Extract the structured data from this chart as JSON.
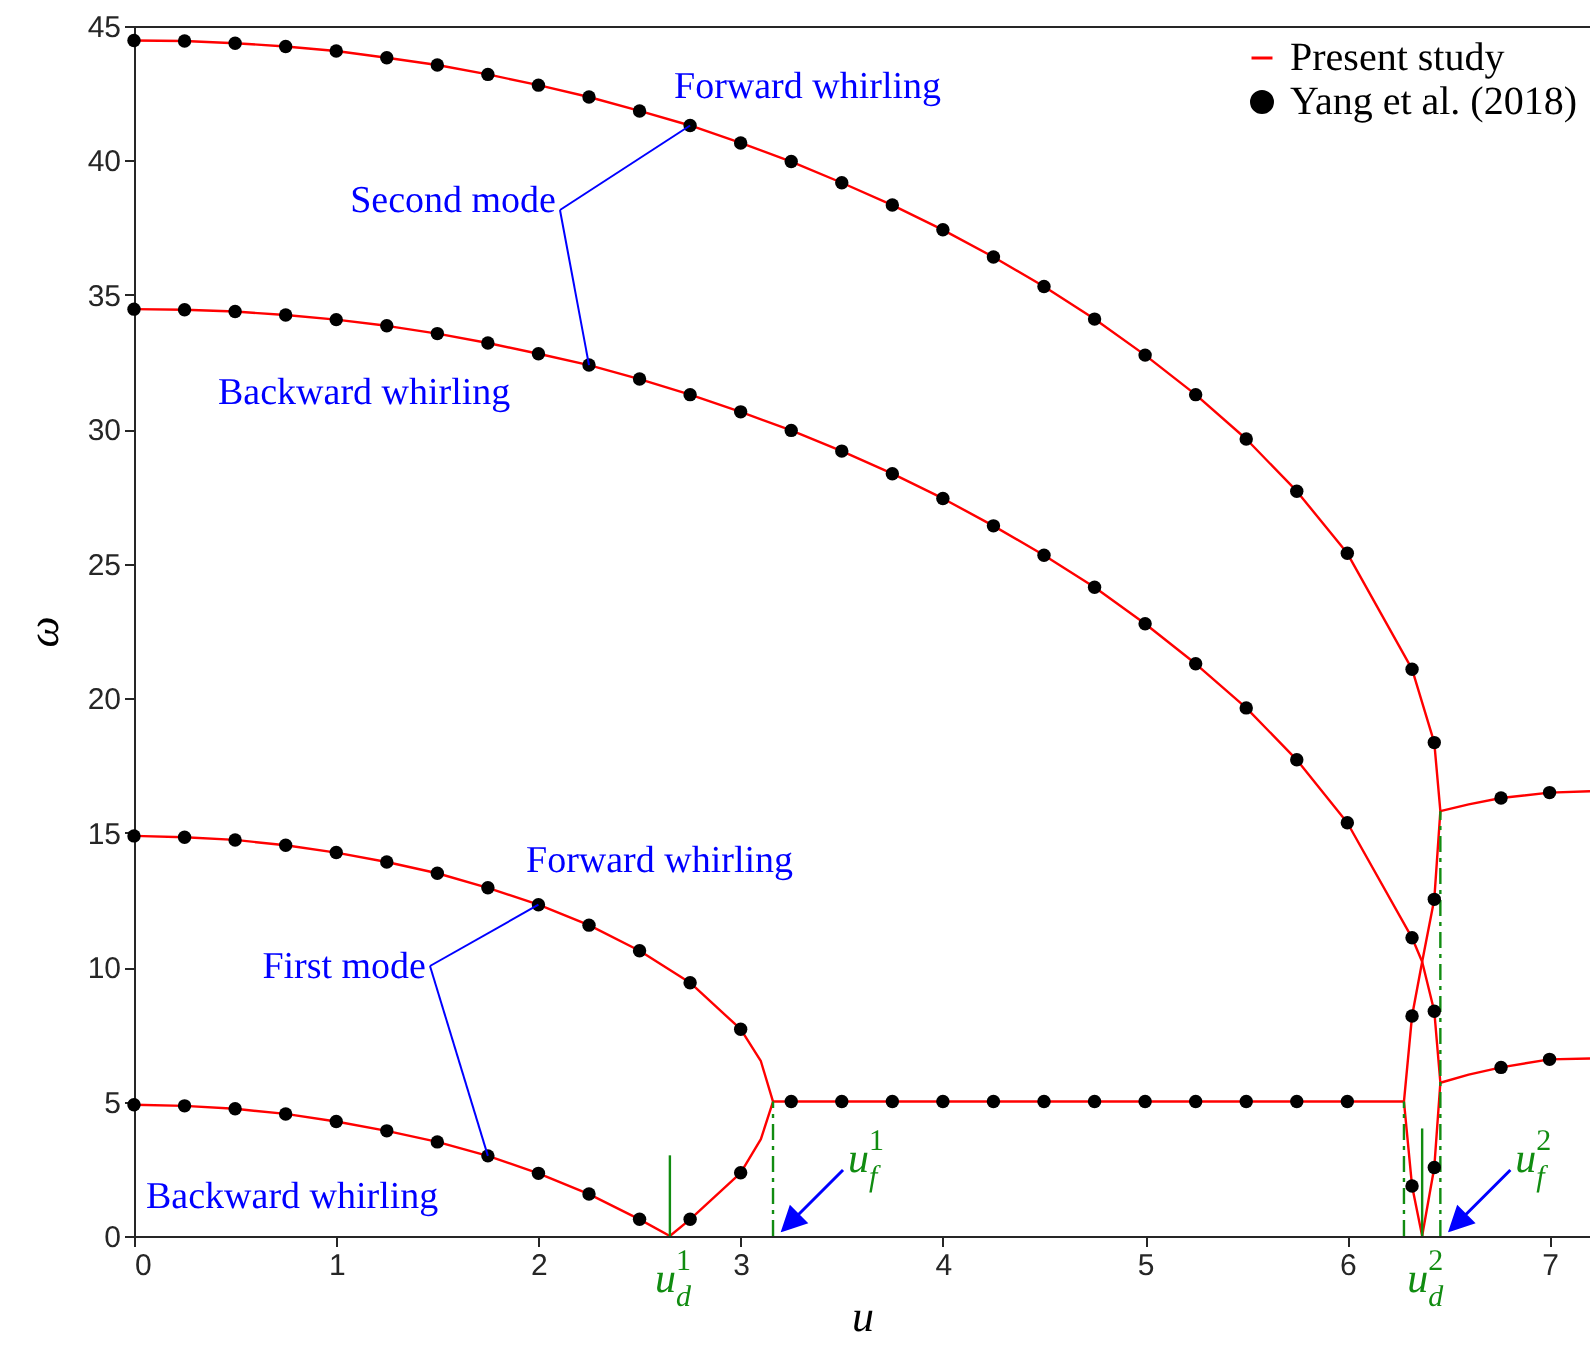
{
  "chart_data": {
    "type": "line",
    "xlabel": "u",
    "ylabel": "ω",
    "xlim": [
      0,
      7.2
    ],
    "ylim": [
      0,
      45
    ],
    "xticks": [
      0,
      1,
      2,
      3,
      4,
      5,
      6,
      7
    ],
    "yticks": [
      0,
      5,
      10,
      15,
      20,
      25,
      30,
      35,
      40,
      45
    ],
    "grid": false,
    "legend": "top right",
    "line_style": "solid",
    "series": [
      {
        "name": "Present study",
        "color": "#ff0000",
        "x": [
          0,
          0.25,
          0.5,
          0.75,
          1,
          1.25,
          1.5,
          1.75,
          2,
          2.25,
          2.5,
          2.75,
          3,
          3.1,
          3.16,
          3.1,
          3,
          2.75,
          2.65
        ],
        "values": [
          14.88,
          14.83,
          14.73,
          14.53,
          14.26,
          13.91,
          13.49,
          12.95,
          12.32,
          11.56,
          10.61,
          9.42,
          7.69,
          6.5,
          5,
          3.6,
          2.35,
          0.62,
          0
        ]
      },
      {
        "color": "#ff0000",
        "x": [
          0,
          0.25,
          0.5,
          0.75,
          1,
          1.25,
          1.5,
          1.75,
          2,
          2.25,
          2.5,
          2.65
        ],
        "values": [
          4.88,
          4.84,
          4.73,
          4.54,
          4.26,
          3.91,
          3.5,
          2.98,
          2.33,
          1.56,
          0.62,
          0
        ]
      },
      {
        "color": "#ff0000",
        "x": [
          3.16,
          6.28
        ],
        "values": [
          5,
          5
        ]
      },
      {
        "color": "#ff0000",
        "x": [
          0,
          0.25,
          0.5,
          0.75,
          1,
          1.25,
          1.5,
          1.75,
          2,
          2.25,
          2.5,
          2.75,
          3,
          3.25,
          3.5,
          3.75,
          4,
          4.25,
          4.5,
          4.75,
          5,
          5.25,
          5.5,
          5.75,
          6,
          6.32,
          6.43,
          6.46,
          6.43,
          6.37,
          6.32,
          6.28,
          6.32,
          6.37
        ],
        "values": [
          44.46,
          44.44,
          44.36,
          44.24,
          44.07,
          43.82,
          43.55,
          43.2,
          42.8,
          42.36,
          41.84,
          41.3,
          40.65,
          39.96,
          39.17,
          38.34,
          37.42,
          36.41,
          35.31,
          34.1,
          32.76,
          31.29,
          29.64,
          27.7,
          25.39,
          21.08,
          18.35,
          15.8,
          12.52,
          10.2,
          8.18,
          5,
          1.86,
          0
        ]
      },
      {
        "color": "#ff0000",
        "x": [
          0,
          0.25,
          0.5,
          0.75,
          1,
          1.25,
          1.5,
          1.75,
          2,
          2.25,
          2.5,
          2.75,
          3,
          3.25,
          3.5,
          3.75,
          4,
          4.25,
          4.5,
          4.75,
          5,
          5.25,
          5.5,
          5.75,
          6,
          6.32,
          6.37,
          6.43,
          6.46,
          6.43,
          6.37
        ],
        "values": [
          34.47,
          34.45,
          34.38,
          34.25,
          34.08,
          33.85,
          33.56,
          33.21,
          32.81,
          32.39,
          31.87,
          31.29,
          30.65,
          29.96,
          29.19,
          28.35,
          27.43,
          26.41,
          25.32,
          24.13,
          22.77,
          21.28,
          19.64,
          17.71,
          15.37,
          11.09,
          10.2,
          8.36,
          5.7,
          2.55,
          0
        ]
      },
      {
        "color": "#ff0000",
        "x": [
          6.46,
          6.6,
          6.76,
          7,
          7.2
        ],
        "values": [
          15.8,
          16.05,
          16.29,
          16.49,
          16.54
        ]
      },
      {
        "color": "#ff0000",
        "x": [
          6.46,
          6.6,
          6.76,
          7,
          7.2
        ],
        "values": [
          5.7,
          6.0,
          6.27,
          6.57,
          6.6
        ]
      },
      {
        "name": "u$_{d}$$^{1}$",
        "color": "#118c11",
        "line_style": "solid",
        "x": [
          2.65,
          2.65
        ],
        "values": [
          0,
          3
        ]
      },
      {
        "name": "u$_{f}$$^{1}$",
        "color": "#118c11",
        "line_style": "dashed",
        "x": [
          3.16,
          3.16
        ],
        "values": [
          0,
          5
        ]
      },
      {
        "color": "#118c11",
        "line_style": "dashed",
        "x": [
          6.28,
          6.28
        ],
        "values": [
          0,
          5
        ]
      },
      {
        "name": "u$_{d}$$^{2}$",
        "color": "#118c11",
        "line_style": "solid",
        "x": [
          6.37,
          6.37
        ],
        "values": [
          0,
          4
        ]
      },
      {
        "name": "u$_{f}$$^{2}$",
        "color": "#118c11",
        "line_style": "dashed",
        "x": [
          6.46,
          6.46
        ],
        "values": [
          0,
          15.8
        ]
      },
      {
        "name": "Yang et al. (2018)",
        "type": "scatter",
        "color": "#000000",
        "marker": "circle",
        "x": [
          0,
          0.25,
          0.5,
          0.75,
          1,
          1.25,
          1.5,
          1.75,
          2,
          2.25,
          2.5,
          2.75,
          3,
          3.25,
          3.5,
          3.75,
          4,
          4.25,
          4.5,
          4.75,
          5,
          5.25,
          5.5,
          5.75,
          6,
          6.32,
          6.43,
          0,
          0.25,
          0.5,
          0.75,
          1,
          1.25,
          1.5,
          1.75,
          2,
          2.25,
          2.5,
          2.75,
          3,
          3.25,
          3.5,
          3.75,
          4,
          4.25,
          4.5,
          4.75,
          5,
          5.25,
          5.5,
          5.75,
          6,
          6.32,
          6.43,
          6.32,
          6.43,
          6.32,
          6.43,
          6.76,
          7,
          6.76,
          7,
          0,
          0.25,
          0.5,
          0.75,
          1,
          1.25,
          1.5,
          1.75,
          2,
          2.25,
          2.5,
          2.75,
          3,
          0,
          0.25,
          0.5,
          0.75,
          1,
          1.25,
          1.5,
          1.75,
          2,
          2.25,
          2.5,
          2.75,
          3,
          3.25,
          3.5,
          3.75,
          4,
          4.25,
          4.5,
          4.75,
          5,
          5.25,
          5.5,
          5.75,
          6
        ],
        "values": [
          44.46,
          44.44,
          44.36,
          44.24,
          44.07,
          43.82,
          43.55,
          43.2,
          42.8,
          42.36,
          41.84,
          41.3,
          40.65,
          39.96,
          39.17,
          38.34,
          37.42,
          36.41,
          35.31,
          34.1,
          32.76,
          31.29,
          29.64,
          27.7,
          25.39,
          21.08,
          18.35,
          34.47,
          34.45,
          34.38,
          34.25,
          34.08,
          33.85,
          33.56,
          33.21,
          32.81,
          32.39,
          31.87,
          31.29,
          30.65,
          29.96,
          29.19,
          28.35,
          27.43,
          26.41,
          25.32,
          24.13,
          22.77,
          21.28,
          19.64,
          17.71,
          15.37,
          11.09,
          12.52,
          8.18,
          8.36,
          1.86,
          2.55,
          16.29,
          16.49,
          6.27,
          6.57,
          14.88,
          14.83,
          14.73,
          14.53,
          14.26,
          13.91,
          13.49,
          12.95,
          12.32,
          11.56,
          10.61,
          9.42,
          7.69,
          4.88,
          4.84,
          4.73,
          4.54,
          4.26,
          3.91,
          3.5,
          2.98,
          2.33,
          1.56,
          0.62,
          0.62,
          2.35,
          5,
          5,
          5,
          5,
          5,
          5,
          5,
          5,
          5,
          5,
          5,
          5
        ]
      }
    ],
    "annotations": [
      "Forward whirling",
      {
        "text": "Second mode",
        "x": 2.75,
        "y": 41.3
      },
      "Backward whirling",
      "Forward whirling",
      {
        "text": "First mode",
        "x": 2.0,
        "y": 12.32
      },
      "Backward whirling"
    ]
  }
}
